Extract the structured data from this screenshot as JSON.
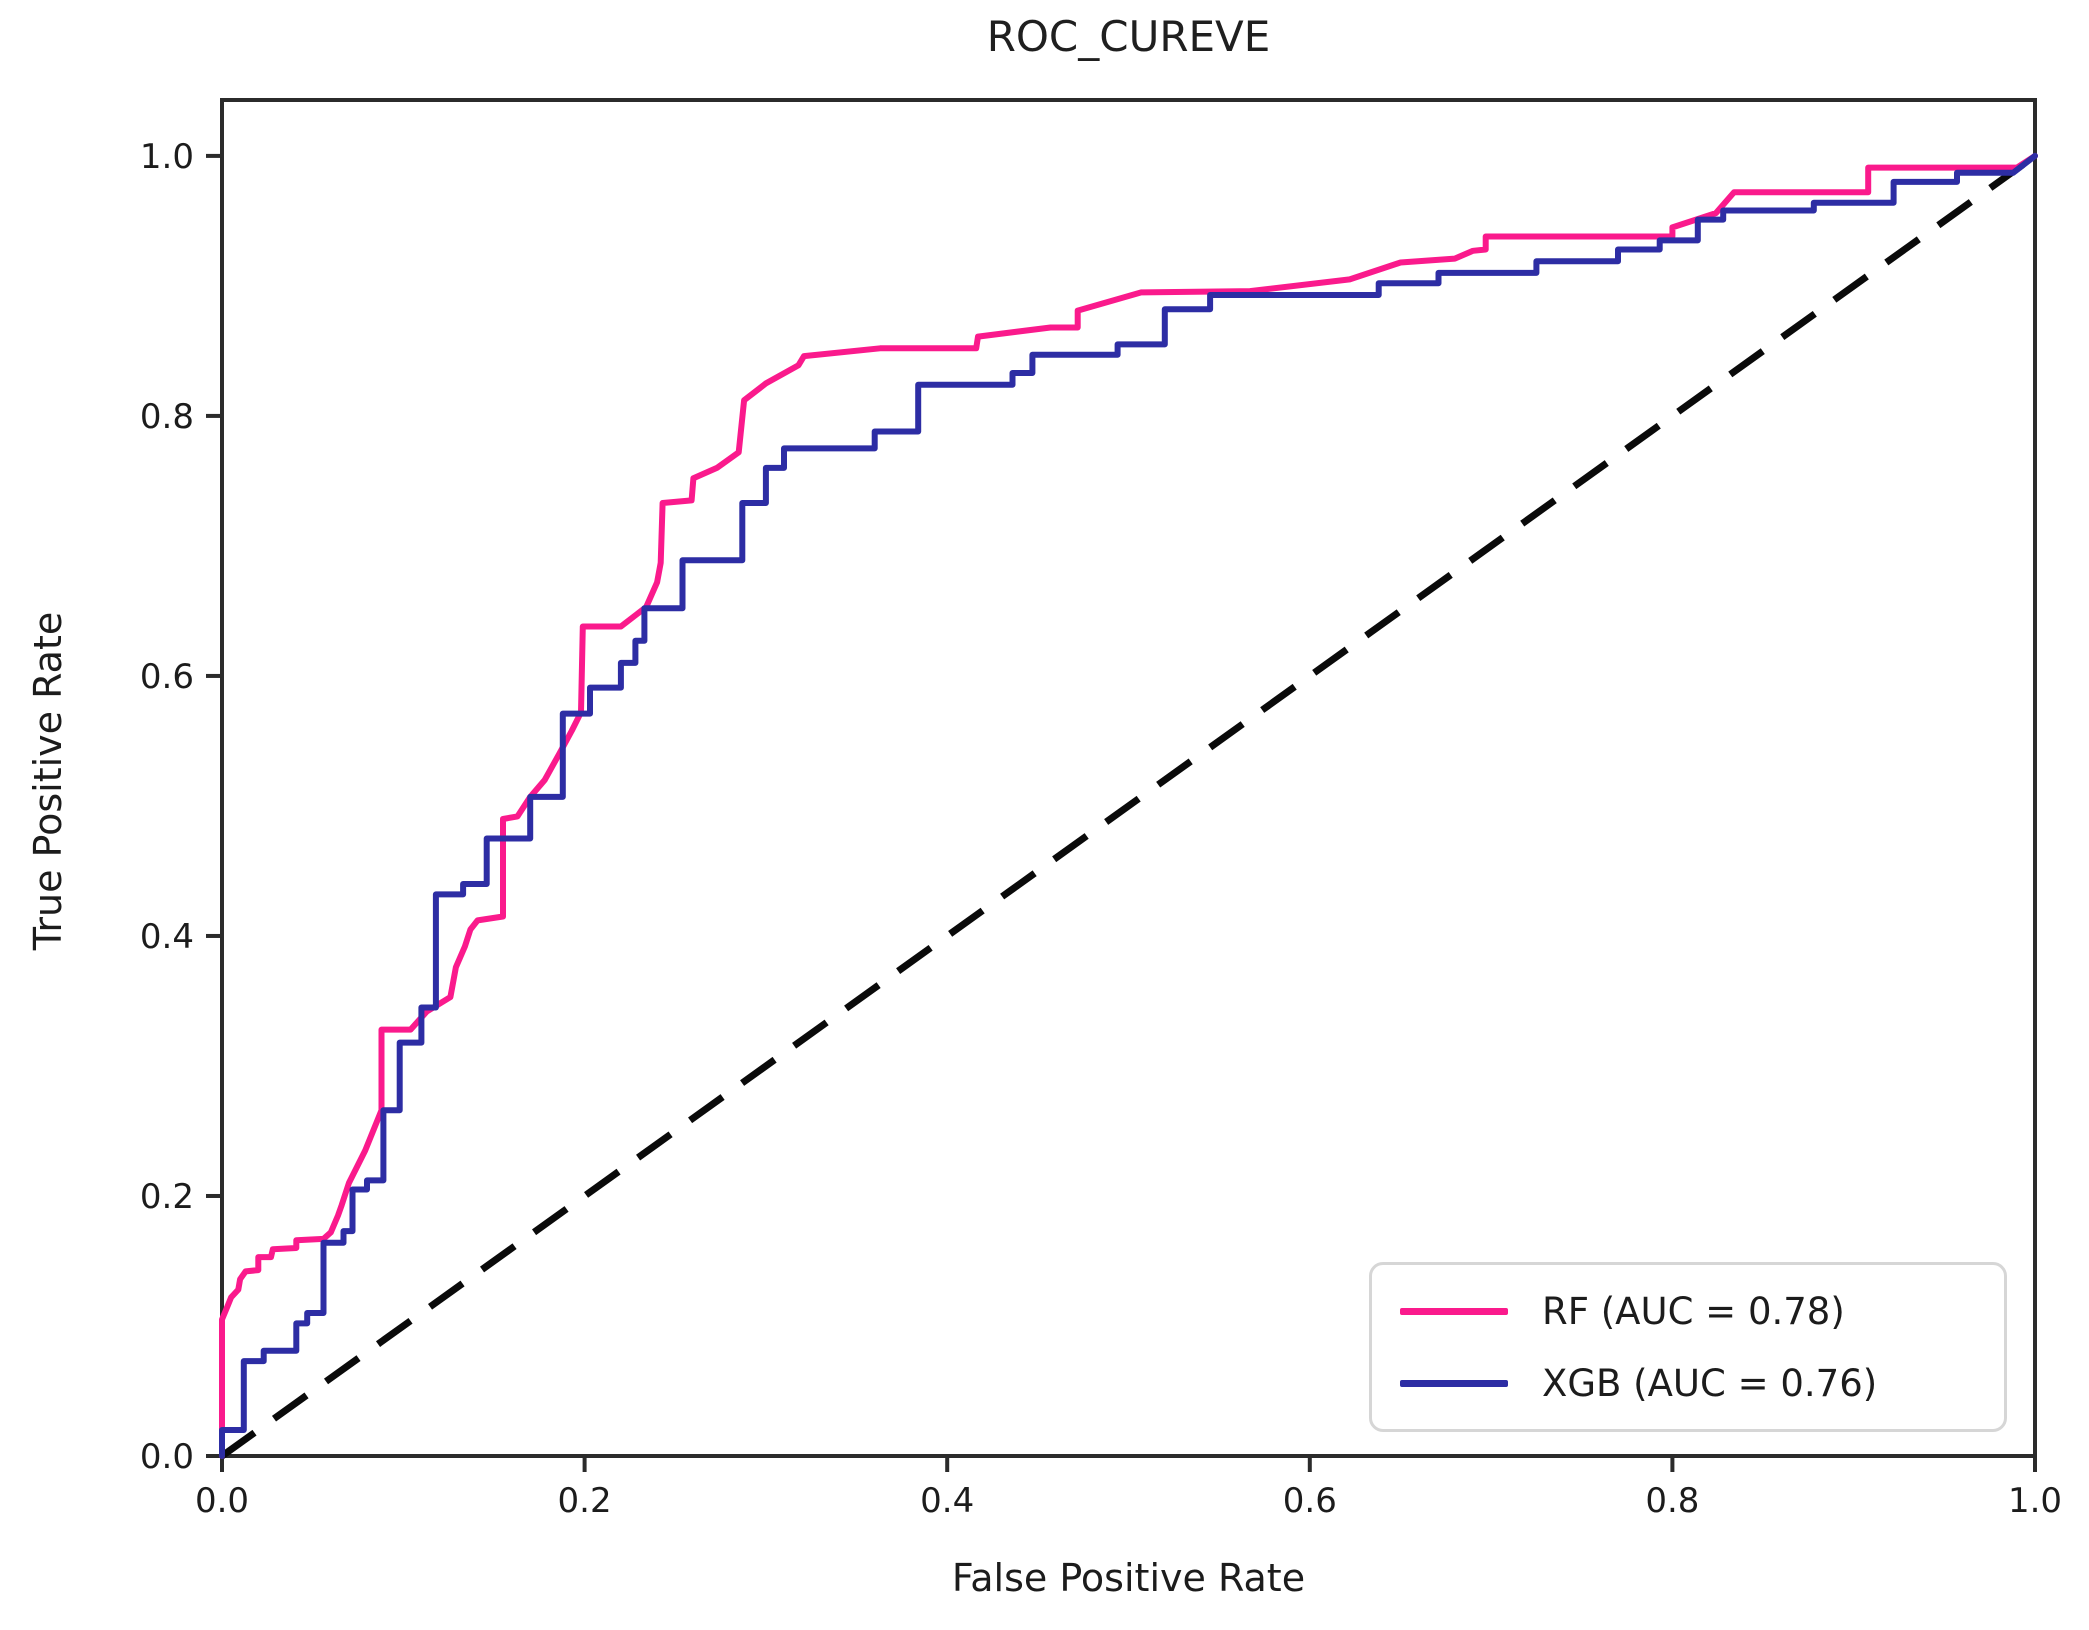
{
  "chart_data": {
    "type": "line",
    "title": "ROC_CUREVE",
    "xlabel": "False Positive Rate",
    "ylabel": "True Positive Rate",
    "xlim": [
      0.0,
      1.0
    ],
    "ylim": [
      0.0,
      1.043
    ],
    "grid": false,
    "x_ticks": [
      {
        "value": 0.0,
        "label": "0.0"
      },
      {
        "value": 0.2,
        "label": "0.2"
      },
      {
        "value": 0.4,
        "label": "0.4"
      },
      {
        "value": 0.6,
        "label": "0.6"
      },
      {
        "value": 0.8,
        "label": "0.8"
      },
      {
        "value": 1.0,
        "label": "1.0"
      }
    ],
    "y_ticks": [
      {
        "value": 0.0,
        "label": "0.0"
      },
      {
        "value": 0.2,
        "label": "0.2"
      },
      {
        "value": 0.4,
        "label": "0.4"
      },
      {
        "value": 0.6,
        "label": "0.6"
      },
      {
        "value": 0.8,
        "label": "0.8"
      },
      {
        "value": 1.0,
        "label": "1.0"
      }
    ],
    "legend": {
      "position": "lower right",
      "entries": [
        {
          "label": "RF (AUC = 0.78)",
          "color": "#fa1a8c",
          "auc": 0.78
        },
        {
          "label": "XGB (AUC = 0.76)",
          "color": "#2d2da4",
          "auc": 0.76
        }
      ]
    },
    "reference_line": {
      "name": "chance-diagonal",
      "style": "dashed",
      "color": "#0a0a0a",
      "width": 7,
      "dash": [
        40,
        24
      ],
      "points": [
        [
          0,
          0
        ],
        [
          1,
          1
        ]
      ]
    },
    "series": [
      {
        "name": "RF",
        "color": "#fa1a8c",
        "width": 6,
        "points": [
          [
            0,
            0
          ],
          [
            0,
            0.105
          ],
          [
            0.003,
            0.115
          ],
          [
            0.005,
            0.122
          ],
          [
            0.009,
            0.128
          ],
          [
            0.01,
            0.136
          ],
          [
            0.013,
            0.142
          ],
          [
            0.02,
            0.143
          ],
          [
            0.02,
            0.153
          ],
          [
            0.027,
            0.153
          ],
          [
            0.028,
            0.159
          ],
          [
            0.041,
            0.16
          ],
          [
            0.041,
            0.166
          ],
          [
            0.056,
            0.167
          ],
          [
            0.06,
            0.172
          ],
          [
            0.064,
            0.185
          ],
          [
            0.066,
            0.193
          ],
          [
            0.07,
            0.21
          ],
          [
            0.079,
            0.235
          ],
          [
            0.088,
            0.266
          ],
          [
            0.088,
            0.328
          ],
          [
            0.104,
            0.328
          ],
          [
            0.113,
            0.342
          ],
          [
            0.126,
            0.353
          ],
          [
            0.129,
            0.376
          ],
          [
            0.134,
            0.392
          ],
          [
            0.137,
            0.405
          ],
          [
            0.141,
            0.412
          ],
          [
            0.155,
            0.415
          ],
          [
            0.155,
            0.49
          ],
          [
            0.163,
            0.492
          ],
          [
            0.17,
            0.507
          ],
          [
            0.178,
            0.52
          ],
          [
            0.186,
            0.54
          ],
          [
            0.193,
            0.558
          ],
          [
            0.198,
            0.572
          ],
          [
            0.199,
            0.638
          ],
          [
            0.22,
            0.638
          ],
          [
            0.234,
            0.653
          ],
          [
            0.24,
            0.672
          ],
          [
            0.242,
            0.687
          ],
          [
            0.243,
            0.733
          ],
          [
            0.259,
            0.735
          ],
          [
            0.26,
            0.752
          ],
          [
            0.273,
            0.76
          ],
          [
            0.285,
            0.772
          ],
          [
            0.288,
            0.812
          ],
          [
            0.3,
            0.825
          ],
          [
            0.318,
            0.839
          ],
          [
            0.321,
            0.846
          ],
          [
            0.363,
            0.852
          ],
          [
            0.416,
            0.852
          ],
          [
            0.417,
            0.861
          ],
          [
            0.457,
            0.868
          ],
          [
            0.472,
            0.868
          ],
          [
            0.472,
            0.881
          ],
          [
            0.507,
            0.895
          ],
          [
            0.567,
            0.896
          ],
          [
            0.622,
            0.905
          ],
          [
            0.65,
            0.918
          ],
          [
            0.68,
            0.921
          ],
          [
            0.69,
            0.927
          ],
          [
            0.697,
            0.928
          ],
          [
            0.697,
            0.938
          ],
          [
            0.8,
            0.938
          ],
          [
            0.8,
            0.945
          ],
          [
            0.824,
            0.956
          ],
          [
            0.834,
            0.972
          ],
          [
            0.908,
            0.972
          ],
          [
            0.908,
            0.991
          ],
          [
            0.99,
            0.991
          ],
          [
            1,
            1
          ]
        ]
      },
      {
        "name": "XGB",
        "color": "#2d2da4",
        "width": 6,
        "points": [
          [
            0,
            0
          ],
          [
            0,
            0.02
          ],
          [
            0.012,
            0.02
          ],
          [
            0.012,
            0.073
          ],
          [
            0.023,
            0.073
          ],
          [
            0.023,
            0.081
          ],
          [
            0.041,
            0.081
          ],
          [
            0.041,
            0.102
          ],
          [
            0.047,
            0.102
          ],
          [
            0.047,
            0.11
          ],
          [
            0.056,
            0.11
          ],
          [
            0.056,
            0.164
          ],
          [
            0.067,
            0.164
          ],
          [
            0.067,
            0.173
          ],
          [
            0.072,
            0.173
          ],
          [
            0.072,
            0.205
          ],
          [
            0.08,
            0.205
          ],
          [
            0.08,
            0.212
          ],
          [
            0.089,
            0.212
          ],
          [
            0.089,
            0.266
          ],
          [
            0.098,
            0.266
          ],
          [
            0.098,
            0.318
          ],
          [
            0.11,
            0.318
          ],
          [
            0.11,
            0.345
          ],
          [
            0.118,
            0.345
          ],
          [
            0.118,
            0.432
          ],
          [
            0.133,
            0.432
          ],
          [
            0.133,
            0.44
          ],
          [
            0.146,
            0.44
          ],
          [
            0.146,
            0.475
          ],
          [
            0.17,
            0.475
          ],
          [
            0.17,
            0.507
          ],
          [
            0.188,
            0.507
          ],
          [
            0.188,
            0.571
          ],
          [
            0.203,
            0.571
          ],
          [
            0.203,
            0.591
          ],
          [
            0.22,
            0.591
          ],
          [
            0.22,
            0.61
          ],
          [
            0.228,
            0.61
          ],
          [
            0.228,
            0.627
          ],
          [
            0.233,
            0.627
          ],
          [
            0.233,
            0.652
          ],
          [
            0.254,
            0.652
          ],
          [
            0.254,
            0.689
          ],
          [
            0.287,
            0.689
          ],
          [
            0.287,
            0.733
          ],
          [
            0.3,
            0.733
          ],
          [
            0.3,
            0.76
          ],
          [
            0.31,
            0.76
          ],
          [
            0.31,
            0.775
          ],
          [
            0.36,
            0.775
          ],
          [
            0.36,
            0.788
          ],
          [
            0.384,
            0.788
          ],
          [
            0.384,
            0.824
          ],
          [
            0.436,
            0.824
          ],
          [
            0.436,
            0.833
          ],
          [
            0.447,
            0.833
          ],
          [
            0.447,
            0.847
          ],
          [
            0.494,
            0.847
          ],
          [
            0.494,
            0.855
          ],
          [
            0.52,
            0.855
          ],
          [
            0.52,
            0.882
          ],
          [
            0.545,
            0.882
          ],
          [
            0.545,
            0.893
          ],
          [
            0.638,
            0.893
          ],
          [
            0.638,
            0.902
          ],
          [
            0.671,
            0.902
          ],
          [
            0.671,
            0.91
          ],
          [
            0.725,
            0.91
          ],
          [
            0.725,
            0.919
          ],
          [
            0.77,
            0.919
          ],
          [
            0.77,
            0.928
          ],
          [
            0.793,
            0.928
          ],
          [
            0.793,
            0.935
          ],
          [
            0.814,
            0.935
          ],
          [
            0.814,
            0.951
          ],
          [
            0.828,
            0.951
          ],
          [
            0.828,
            0.958
          ],
          [
            0.878,
            0.958
          ],
          [
            0.878,
            0.964
          ],
          [
            0.922,
            0.964
          ],
          [
            0.922,
            0.98
          ],
          [
            0.957,
            0.98
          ],
          [
            0.957,
            0.987
          ],
          [
            0.988,
            0.987
          ],
          [
            1,
            1
          ]
        ]
      }
    ],
    "plot_style": {
      "spine_color": "#2b2b2b",
      "spine_width": 4,
      "tick_length": 16,
      "background": "#ffffff"
    }
  }
}
